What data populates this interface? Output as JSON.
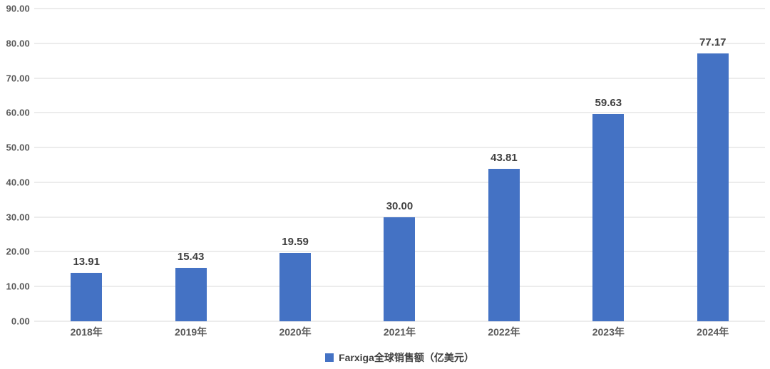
{
  "chart_data": {
    "type": "bar",
    "title": "",
    "categories": [
      "2018年",
      "2019年",
      "2020年",
      "2021年",
      "2022年",
      "2023年",
      "2024年"
    ],
    "values": [
      13.91,
      15.43,
      19.59,
      30.0,
      43.81,
      59.63,
      77.17
    ],
    "value_labels": [
      "13.91",
      "15.43",
      "19.59",
      "30.00",
      "43.81",
      "59.63",
      "77.17"
    ],
    "series_name": "Farxiga全球销售额（亿美元）",
    "xlabel": "",
    "ylabel": "",
    "ylim": [
      0,
      90
    ],
    "y_ticks": [
      0,
      10,
      20,
      30,
      40,
      50,
      60,
      70,
      80,
      90
    ],
    "y_tick_labels": [
      "0.00",
      "10.00",
      "20.00",
      "30.00",
      "40.00",
      "50.00",
      "60.00",
      "70.00",
      "80.00",
      "90.00"
    ],
    "grid": true,
    "legend_position": "bottom",
    "colors": {
      "bar": "#4472C4",
      "gridline": "#D9D9D9",
      "axis_tick_label": "#595959",
      "value_label": "#404040",
      "legend_text": "#404040",
      "background": "#FFFFFF"
    }
  }
}
